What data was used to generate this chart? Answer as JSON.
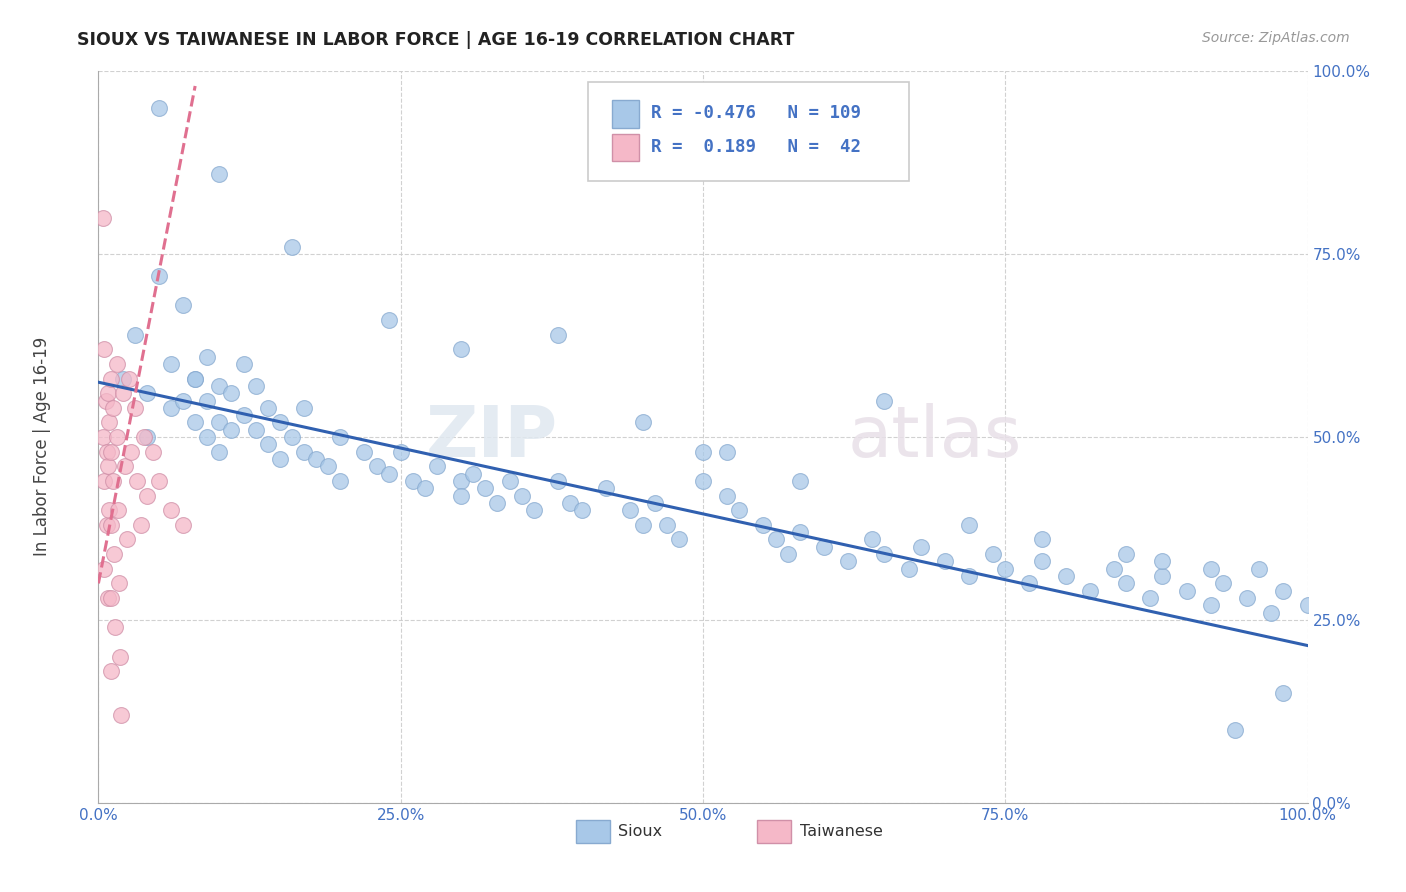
{
  "title": "SIOUX VS TAIWANESE IN LABOR FORCE | AGE 16-19 CORRELATION CHART",
  "source_text": "Source: ZipAtlas.com",
  "ylabel": "In Labor Force | Age 16-19",
  "legend_label1": "Sioux",
  "legend_label2": "Taiwanese",
  "R1": -0.476,
  "N1": 109,
  "R2": 0.189,
  "N2": 42,
  "color_blue": "#a8c8e8",
  "color_pink": "#f5b8c8",
  "color_blue_line": "#3060b0",
  "color_pink_line": "#e07090",
  "watermark_zip": "ZIP",
  "watermark_atlas": "atlas",
  "xlim": [
    0.0,
    1.0
  ],
  "ylim": [
    0.0,
    1.0
  ],
  "blue_line_y0": 0.575,
  "blue_line_y1": 0.215,
  "pink_line_x0": 0.0,
  "pink_line_x1": 0.08,
  "pink_line_y0": 0.3,
  "pink_line_y1": 0.98,
  "sioux_points": [
    [
      0.02,
      0.58
    ],
    [
      0.03,
      0.64
    ],
    [
      0.04,
      0.56
    ],
    [
      0.04,
      0.5
    ],
    [
      0.05,
      0.72
    ],
    [
      0.06,
      0.6
    ],
    [
      0.06,
      0.54
    ],
    [
      0.07,
      0.68
    ],
    [
      0.07,
      0.55
    ],
    [
      0.08,
      0.58
    ],
    [
      0.08,
      0.52
    ],
    [
      0.08,
      0.58
    ],
    [
      0.09,
      0.61
    ],
    [
      0.09,
      0.55
    ],
    [
      0.09,
      0.5
    ],
    [
      0.1,
      0.57
    ],
    [
      0.1,
      0.52
    ],
    [
      0.1,
      0.48
    ],
    [
      0.11,
      0.56
    ],
    [
      0.11,
      0.51
    ],
    [
      0.12,
      0.6
    ],
    [
      0.12,
      0.53
    ],
    [
      0.13,
      0.57
    ],
    [
      0.13,
      0.51
    ],
    [
      0.14,
      0.54
    ],
    [
      0.14,
      0.49
    ],
    [
      0.15,
      0.52
    ],
    [
      0.15,
      0.47
    ],
    [
      0.16,
      0.5
    ],
    [
      0.17,
      0.54
    ],
    [
      0.17,
      0.48
    ],
    [
      0.18,
      0.47
    ],
    [
      0.19,
      0.46
    ],
    [
      0.2,
      0.5
    ],
    [
      0.2,
      0.44
    ],
    [
      0.22,
      0.48
    ],
    [
      0.23,
      0.46
    ],
    [
      0.24,
      0.45
    ],
    [
      0.25,
      0.48
    ],
    [
      0.26,
      0.44
    ],
    [
      0.27,
      0.43
    ],
    [
      0.28,
      0.46
    ],
    [
      0.3,
      0.44
    ],
    [
      0.3,
      0.42
    ],
    [
      0.31,
      0.45
    ],
    [
      0.32,
      0.43
    ],
    [
      0.33,
      0.41
    ],
    [
      0.34,
      0.44
    ],
    [
      0.35,
      0.42
    ],
    [
      0.36,
      0.4
    ],
    [
      0.38,
      0.44
    ],
    [
      0.39,
      0.41
    ],
    [
      0.4,
      0.4
    ],
    [
      0.42,
      0.43
    ],
    [
      0.44,
      0.4
    ],
    [
      0.45,
      0.38
    ],
    [
      0.46,
      0.41
    ],
    [
      0.47,
      0.38
    ],
    [
      0.48,
      0.36
    ],
    [
      0.5,
      0.48
    ],
    [
      0.5,
      0.44
    ],
    [
      0.52,
      0.42
    ],
    [
      0.53,
      0.4
    ],
    [
      0.55,
      0.38
    ],
    [
      0.56,
      0.36
    ],
    [
      0.57,
      0.34
    ],
    [
      0.58,
      0.37
    ],
    [
      0.6,
      0.35
    ],
    [
      0.62,
      0.33
    ],
    [
      0.64,
      0.36
    ],
    [
      0.65,
      0.34
    ],
    [
      0.67,
      0.32
    ],
    [
      0.68,
      0.35
    ],
    [
      0.7,
      0.33
    ],
    [
      0.72,
      0.31
    ],
    [
      0.74,
      0.34
    ],
    [
      0.75,
      0.32
    ],
    [
      0.77,
      0.3
    ],
    [
      0.78,
      0.33
    ],
    [
      0.8,
      0.31
    ],
    [
      0.82,
      0.29
    ],
    [
      0.84,
      0.32
    ],
    [
      0.85,
      0.3
    ],
    [
      0.87,
      0.28
    ],
    [
      0.88,
      0.31
    ],
    [
      0.9,
      0.29
    ],
    [
      0.92,
      0.27
    ],
    [
      0.93,
      0.3
    ],
    [
      0.95,
      0.28
    ],
    [
      0.97,
      0.26
    ],
    [
      0.98,
      0.29
    ],
    [
      1.0,
      0.27
    ],
    [
      0.1,
      0.86
    ],
    [
      0.16,
      0.76
    ],
    [
      0.24,
      0.66
    ],
    [
      0.3,
      0.62
    ],
    [
      0.38,
      0.64
    ],
    [
      0.45,
      0.52
    ],
    [
      0.52,
      0.48
    ],
    [
      0.58,
      0.44
    ],
    [
      0.65,
      0.55
    ],
    [
      0.72,
      0.38
    ],
    [
      0.78,
      0.36
    ],
    [
      0.85,
      0.34
    ],
    [
      0.88,
      0.33
    ],
    [
      0.92,
      0.32
    ],
    [
      0.96,
      0.32
    ],
    [
      0.98,
      0.15
    ],
    [
      0.94,
      0.1
    ],
    [
      0.05,
      0.95
    ]
  ],
  "taiwanese_points": [
    [
      0.004,
      0.5
    ],
    [
      0.005,
      0.62
    ],
    [
      0.005,
      0.44
    ],
    [
      0.005,
      0.32
    ],
    [
      0.006,
      0.55
    ],
    [
      0.007,
      0.48
    ],
    [
      0.007,
      0.38
    ],
    [
      0.008,
      0.56
    ],
    [
      0.008,
      0.46
    ],
    [
      0.008,
      0.28
    ],
    [
      0.009,
      0.52
    ],
    [
      0.009,
      0.4
    ],
    [
      0.01,
      0.58
    ],
    [
      0.01,
      0.48
    ],
    [
      0.01,
      0.38
    ],
    [
      0.01,
      0.28
    ],
    [
      0.01,
      0.18
    ],
    [
      0.012,
      0.54
    ],
    [
      0.012,
      0.44
    ],
    [
      0.013,
      0.34
    ],
    [
      0.014,
      0.24
    ],
    [
      0.015,
      0.6
    ],
    [
      0.015,
      0.5
    ],
    [
      0.016,
      0.4
    ],
    [
      0.017,
      0.3
    ],
    [
      0.018,
      0.2
    ],
    [
      0.019,
      0.12
    ],
    [
      0.02,
      0.56
    ],
    [
      0.022,
      0.46
    ],
    [
      0.024,
      0.36
    ],
    [
      0.025,
      0.58
    ],
    [
      0.027,
      0.48
    ],
    [
      0.03,
      0.54
    ],
    [
      0.032,
      0.44
    ],
    [
      0.035,
      0.38
    ],
    [
      0.038,
      0.5
    ],
    [
      0.04,
      0.42
    ],
    [
      0.045,
      0.48
    ],
    [
      0.05,
      0.44
    ],
    [
      0.06,
      0.4
    ],
    [
      0.07,
      0.38
    ],
    [
      0.004,
      0.8
    ]
  ]
}
